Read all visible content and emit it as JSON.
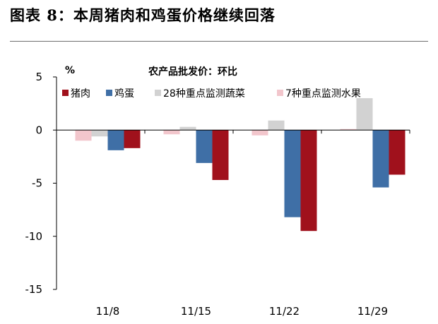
{
  "figure_title": "图表 8：本周猪肉和鸡蛋价格继续回落",
  "chart_data": {
    "type": "bar",
    "title": "农产品批发价：环比",
    "ylabel": "%",
    "xlabel": "",
    "categories": [
      "11/8",
      "11/15",
      "11/22",
      "11/29"
    ],
    "ylim": [
      -15,
      5
    ],
    "yticks": [
      5,
      0,
      -5,
      -10,
      -15
    ],
    "grid": false,
    "legend_position": "top",
    "series": [
      {
        "name": "7种重点监测水果",
        "color": "#f2c6cc",
        "values": [
          -1.0,
          -0.4,
          -0.5,
          0.1
        ]
      },
      {
        "name": "28种重点监测蔬菜",
        "color": "#d2d2d2",
        "values": [
          -0.6,
          0.3,
          0.9,
          3.0
        ]
      },
      {
        "name": "鸡蛋",
        "color": "#3f6fa6",
        "values": [
          -1.9,
          -3.1,
          -8.2,
          -5.4
        ]
      },
      {
        "name": "猪肉",
        "color": "#a0111c",
        "values": [
          -1.7,
          -4.7,
          -9.5,
          -4.2
        ]
      }
    ],
    "legend_order": [
      3,
      2,
      1,
      0
    ]
  }
}
